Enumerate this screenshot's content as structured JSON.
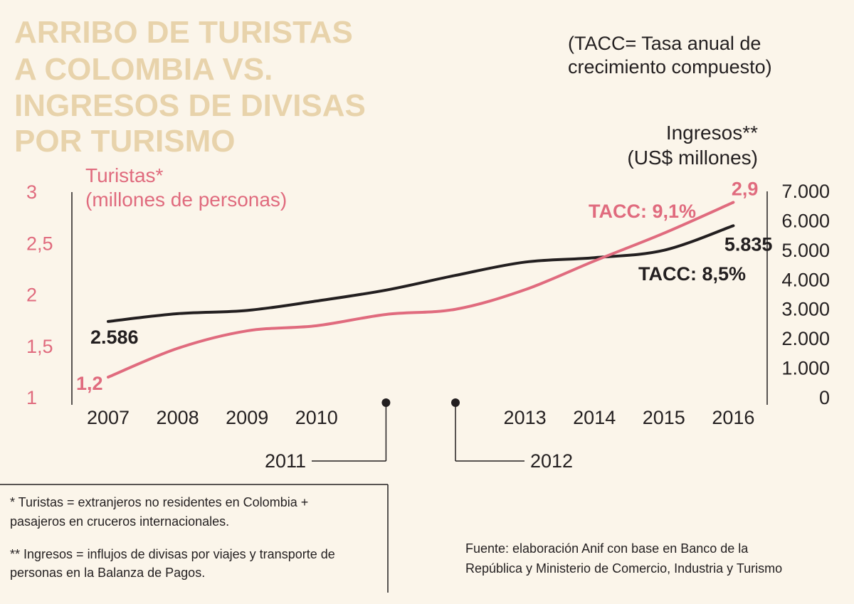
{
  "title_lines": [
    "ARRIBO DE TURISTAS",
    "A COLOMBIA VS.",
    "INGRESOS DE DIVISAS",
    "POR TURISMO"
  ],
  "note_lines": [
    "(TACC= Tasa anual de",
    "crecimiento compuesto)"
  ],
  "colors": {
    "background": "#fbf5ea",
    "title": "#e8d3ab",
    "turistas": "#e06b7e",
    "ingresos": "#231f20"
  },
  "footnotes": {
    "turistas": [
      "* Turistas = extranjeros no residentes en Colombia +",
      "pasajeros en cruceros internacionales."
    ],
    "ingresos": [
      "** Ingresos = influjos de divisas por viajes y transporte de",
      "personas en la Balanza de Pagos."
    ]
  },
  "source_lines": [
    "Fuente: elaboración Anif con base en Banco de la",
    "República y Ministerio de Comercio, Industria y Turismo"
  ],
  "chart_data": {
    "type": "line",
    "x": [
      2007,
      2008,
      2009,
      2010,
      2011,
      2012,
      2013,
      2014,
      2015,
      2016
    ],
    "x_tick_labels": [
      "2007",
      "2008",
      "2009",
      "2010",
      "2011",
      "2012",
      "2013",
      "2014",
      "2015",
      "2016"
    ],
    "callout_years": [
      "2011",
      "2012"
    ],
    "left_axis": {
      "label_lines": [
        "Turistas*",
        "(millones de personas)"
      ],
      "range": [
        1,
        3
      ],
      "ticks": [
        1,
        1.5,
        2,
        2.5,
        3
      ],
      "tick_labels": [
        "1",
        "1,5",
        "2",
        "2,5",
        "3"
      ]
    },
    "right_axis": {
      "label_lines": [
        "Ingresos**",
        "(US$ millones)"
      ],
      "range": [
        0,
        7000
      ],
      "ticks": [
        0,
        1000,
        2000,
        3000,
        4000,
        5000,
        6000,
        7000
      ],
      "tick_labels": [
        "0",
        "1.000",
        "2.000",
        "3.000",
        "4.000",
        "5.000",
        "6.000",
        "7.000"
      ]
    },
    "series": [
      {
        "name": "Turistas*",
        "axis": "left",
        "values": [
          1.2,
          1.48,
          1.65,
          1.7,
          1.81,
          1.86,
          2.05,
          2.33,
          2.6,
          2.9
        ],
        "start_label": "1,2",
        "end_label": "2,9",
        "tacc_label": "TACC: 9,1%"
      },
      {
        "name": "Ingresos**",
        "axis": "right",
        "values": [
          2586,
          2850,
          2960,
          3280,
          3650,
          4150,
          4600,
          4750,
          5000,
          5835
        ],
        "start_label": "2.586",
        "end_label": "5.835",
        "tacc_label": "TACC: 8,5%"
      }
    ]
  }
}
